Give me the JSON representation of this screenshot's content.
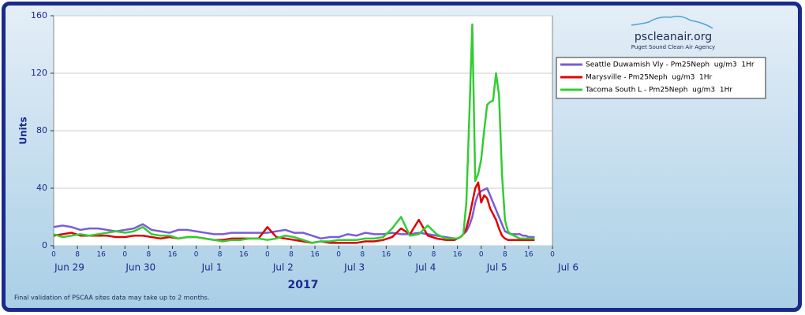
{
  "chart_data": {
    "type": "line",
    "ylabel": "Units",
    "xlabel": "2017",
    "ylim": [
      0,
      160
    ],
    "yticks": [
      0,
      40,
      80,
      120,
      160
    ],
    "grid": true,
    "xlim": [
      0,
      168
    ],
    "xticks": [
      0,
      8,
      16,
      {
        "value": 24,
        "label": "0"
      },
      {
        "value": 32,
        "label": "8"
      },
      {
        "value": 40,
        "label": "16"
      },
      {
        "value": 48,
        "label": "0"
      },
      {
        "value": 56,
        "label": "8"
      },
      {
        "value": 64,
        "label": "16"
      },
      {
        "value": 72,
        "label": "0"
      },
      {
        "value": 80,
        "label": "8"
      },
      {
        "value": 88,
        "label": "16"
      },
      {
        "value": 96,
        "label": "0"
      },
      {
        "value": 104,
        "label": "8"
      },
      {
        "value": 112,
        "label": "16"
      },
      {
        "value": 120,
        "label": "0"
      },
      {
        "value": 128,
        "label": "8"
      },
      {
        "value": 136,
        "label": "16"
      },
      {
        "value": 144,
        "label": "0"
      },
      {
        "value": 152,
        "label": "8"
      },
      {
        "value": 160,
        "label": "16"
      },
      {
        "value": 168,
        "label": "0"
      }
    ],
    "day_ticks": [
      {
        "value": 0,
        "label": "Jun 29"
      },
      {
        "value": 24,
        "label": "Jun 30"
      },
      {
        "value": 48,
        "label": "Jul 1"
      },
      {
        "value": 72,
        "label": "Jul 2"
      },
      {
        "value": 96,
        "label": "Jul 3"
      },
      {
        "value": 120,
        "label": "Jul 4"
      },
      {
        "value": 144,
        "label": "Jul 5"
      },
      {
        "value": 168,
        "label": "Jul 6"
      }
    ],
    "x": [
      0,
      3,
      6,
      9,
      12,
      15,
      18,
      21,
      24,
      27,
      30,
      33,
      36,
      39,
      42,
      45,
      48,
      51,
      54,
      57,
      60,
      63,
      66,
      69,
      72,
      75,
      78,
      81,
      84,
      87,
      90,
      93,
      96,
      99,
      102,
      105,
      108,
      111,
      114,
      117,
      120,
      123,
      126,
      129,
      132,
      135,
      136,
      137,
      138,
      139,
      140,
      141,
      142,
      143,
      144,
      145,
      146,
      147,
      148,
      149,
      150,
      151,
      152,
      153,
      154,
      155,
      156,
      157,
      158,
      159,
      160,
      161,
      162
    ],
    "series": [
      {
        "name": "Seattle Duwamish Vly - Pm25Neph  ug/m3  1Hr",
        "color": "#7a5cd6",
        "values": [
          13,
          14,
          13,
          11,
          12,
          12,
          11,
          10,
          11,
          12,
          15,
          11,
          10,
          9,
          11,
          11,
          10,
          9,
          8,
          8,
          9,
          9,
          9,
          9,
          9,
          10,
          11,
          9,
          9,
          7,
          5,
          6,
          6,
          8,
          7,
          9,
          8,
          8,
          9,
          8,
          8,
          9,
          8,
          7,
          6,
          5,
          5,
          6,
          8,
          10,
          14,
          20,
          30,
          36,
          38,
          39,
          40,
          35,
          30,
          25,
          20,
          15,
          10,
          9,
          8,
          8,
          8,
          8,
          7,
          7,
          6,
          6,
          6
        ]
      },
      {
        "name": "Marysville - Pm25Neph  ug/m3  1Hr",
        "color": "#e00000",
        "values": [
          7,
          8,
          9,
          7,
          7,
          7,
          7,
          6,
          6,
          7,
          7,
          6,
          5,
          6,
          5,
          6,
          6,
          5,
          4,
          4,
          5,
          5,
          5,
          5,
          13,
          6,
          5,
          4,
          3,
          2,
          3,
          2,
          2,
          2,
          2,
          3,
          3,
          4,
          6,
          12,
          8,
          18,
          7,
          5,
          4,
          4,
          5,
          6,
          8,
          12,
          20,
          30,
          40,
          44,
          30,
          35,
          33,
          26,
          22,
          18,
          12,
          7,
          5,
          4,
          4,
          4,
          4,
          4,
          4,
          4,
          4,
          4,
          4
        ]
      },
      {
        "name": "Tacoma South L - Pm25Neph  ug/m3  1Hr",
        "color": "#33cc33",
        "values": [
          8,
          6,
          7,
          8,
          7,
          8,
          9,
          10,
          9,
          10,
          13,
          8,
          7,
          7,
          5,
          6,
          6,
          5,
          4,
          3,
          4,
          4,
          5,
          5,
          4,
          5,
          7,
          6,
          4,
          2,
          3,
          3,
          4,
          4,
          4,
          5,
          5,
          6,
          12,
          20,
          7,
          8,
          14,
          8,
          5,
          5,
          5,
          6,
          8,
          30,
          90,
          154,
          45,
          50,
          60,
          80,
          98,
          100,
          101,
          120,
          105,
          50,
          18,
          10,
          8,
          7,
          6,
          5,
          5,
          5,
          5,
          5,
          5
        ]
      }
    ],
    "logo": {
      "title": "pscleanair.org",
      "subtitle": "Puget Sound Clean Air Agency"
    },
    "note": "Final validation of PSCAA sites data may take up to 2 months."
  }
}
